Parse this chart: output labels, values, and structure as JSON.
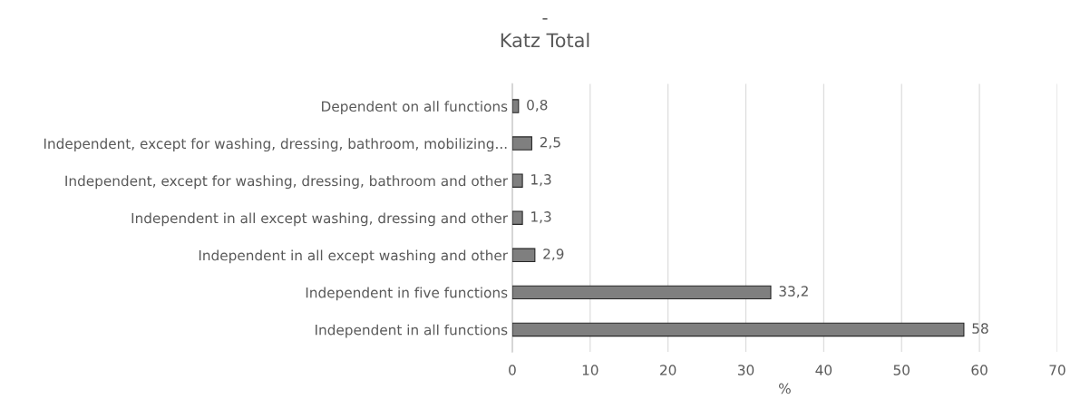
{
  "chart_data": {
    "type": "bar",
    "orientation": "horizontal",
    "title": "-",
    "subtitle": "Katz Total",
    "xlabel": "%",
    "categories": [
      "Dependent on all functions",
      "Independent, except for washing, dressing, bathroom, mobilizing...",
      "Independent, except for washing, dressing, bathroom and other",
      "Independent in all except washing, dressing and other",
      "Independent in all except washing and other",
      "Independent in five functions",
      "Independent in all functions"
    ],
    "values": [
      0.8,
      2.5,
      1.3,
      1.3,
      2.9,
      33.2,
      58
    ],
    "value_labels": [
      "0,8",
      "2,5",
      "1,3",
      "1,3",
      "2,9",
      "33,2",
      "58"
    ],
    "color": "#7f7f7f",
    "xlim": [
      0,
      70
    ],
    "xticks": [
      0,
      10,
      20,
      30,
      40,
      50,
      60,
      70
    ],
    "grid": "x",
    "legend": false
  }
}
